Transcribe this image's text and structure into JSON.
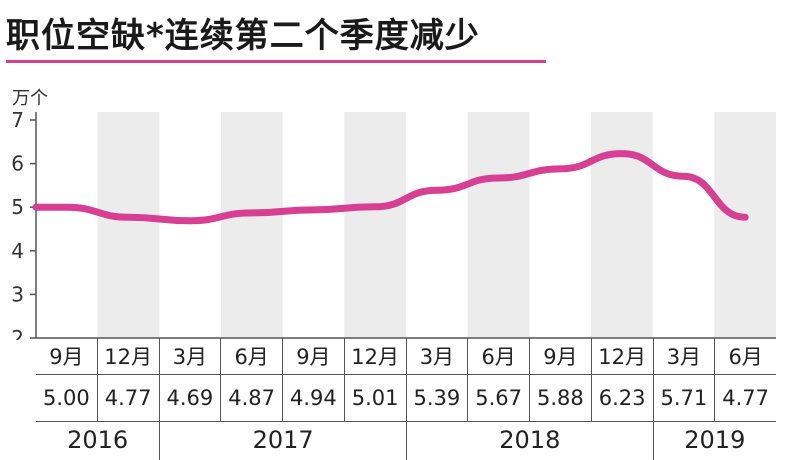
{
  "title": "职位空缺*连续第二个季度减少",
  "colors": {
    "line": "#d63f92",
    "stripe": "#ececec",
    "axis": "#555555",
    "underline": "#d63f92"
  },
  "chart_data": {
    "type": "line",
    "ylabel": "万个",
    "ylim": [
      2,
      7
    ],
    "yticks": [
      2,
      3,
      4,
      5,
      6,
      7
    ],
    "grid": false,
    "legend": "none",
    "categories": [
      "9月",
      "12月",
      "3月",
      "6月",
      "9月",
      "12月",
      "3月",
      "6月",
      "9月",
      "12月",
      "3月",
      "6月"
    ],
    "value_labels": [
      "5.00",
      "4.77",
      "4.69",
      "4.87",
      "4.94",
      "5.01",
      "5.39",
      "5.67",
      "5.88",
      "6.23",
      "5.71",
      "4.77"
    ],
    "series": [
      {
        "values": [
          5.0,
          4.77,
          4.69,
          4.87,
          4.94,
          5.01,
          5.39,
          5.67,
          5.88,
          6.23,
          5.71,
          4.77
        ]
      }
    ],
    "years": [
      {
        "label": "2016",
        "span": 2
      },
      {
        "label": "2017",
        "span": 4
      },
      {
        "label": "2018",
        "span": 4
      },
      {
        "label": "2019",
        "span": 2
      }
    ]
  }
}
